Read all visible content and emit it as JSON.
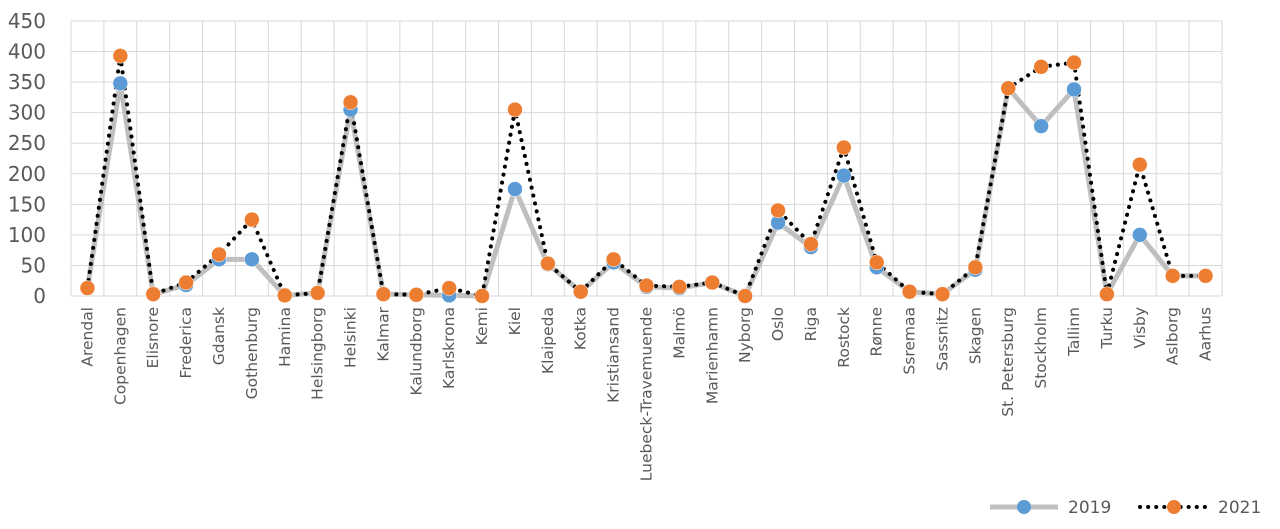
{
  "chart_data": {
    "type": "line",
    "title": "",
    "xlabel": "",
    "ylabel": "",
    "ylim": [
      0,
      450
    ],
    "yticks": [
      0,
      50,
      100,
      150,
      200,
      250,
      300,
      350,
      400,
      450
    ],
    "grid": true,
    "legend_position": "bottom-right",
    "categories": [
      "Arendal",
      "Copenhagen",
      "Elisnore",
      "Frederica",
      "Gdansk",
      "Gothenburg",
      "Hamina",
      "Helsingborg",
      "Helsinki",
      "Kalmar",
      "Kalundborg",
      "Karlskrona",
      "Kemi",
      "Kiel",
      "Klaipeda",
      "Kotka",
      "Kristiansand",
      "Luebeck-Travemuende",
      "Malmö",
      "Marienhamn",
      "Nyborg",
      "Oslo",
      "Riga",
      "Rostock",
      "Rønne",
      "Ssremaa",
      "Sassnitz",
      "Skagen",
      "St. Petersburg",
      "Stockholm",
      "Tallinn",
      "Turku",
      "Visby",
      "Aslborg",
      "Aarhus"
    ],
    "series": [
      {
        "name": "2019",
        "color": "#5b9bd5",
        "line_color": "#bfbfbf",
        "line_style": "solid",
        "values": [
          13,
          348,
          3,
          18,
          60,
          60,
          1,
          5,
          305,
          3,
          2,
          1,
          0,
          175,
          52,
          7,
          55,
          15,
          13,
          22,
          0,
          120,
          80,
          197,
          47,
          7,
          3,
          43,
          340,
          278,
          338,
          3,
          100,
          33,
          33
        ]
      },
      {
        "name": "2021",
        "color": "#ed7d31",
        "line_color": "#000000",
        "line_style": "dotted",
        "values": [
          13,
          393,
          3,
          22,
          68,
          125,
          1,
          5,
          317,
          3,
          2,
          13,
          0,
          305,
          53,
          7,
          60,
          17,
          15,
          22,
          0,
          140,
          85,
          243,
          55,
          7,
          3,
          47,
          340,
          375,
          382,
          3,
          215,
          33,
          33
        ]
      }
    ]
  }
}
